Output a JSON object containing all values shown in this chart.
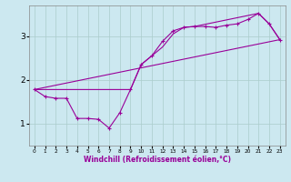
{
  "xlabel": "Windchill (Refroidissement éolien,°C)",
  "background_color": "#cce8f0",
  "grid_color": "#aacccc",
  "line_color": "#990099",
  "xlim": [
    -0.5,
    23.5
  ],
  "ylim": [
    0.5,
    3.7
  ],
  "yticks": [
    1,
    2,
    3
  ],
  "xticks": [
    0,
    1,
    2,
    3,
    4,
    5,
    6,
    7,
    8,
    9,
    10,
    11,
    12,
    13,
    14,
    15,
    16,
    17,
    18,
    19,
    20,
    21,
    22,
    23
  ],
  "series1_x": [
    0,
    1,
    2,
    3,
    4,
    5,
    6,
    7,
    8,
    9,
    10,
    11,
    12,
    13,
    14,
    15,
    16,
    17,
    18,
    19,
    20,
    21,
    22,
    23
  ],
  "series1_y": [
    1.78,
    1.62,
    1.58,
    1.58,
    1.12,
    1.12,
    1.1,
    0.9,
    1.25,
    1.78,
    2.35,
    2.55,
    2.88,
    3.12,
    3.2,
    3.22,
    3.22,
    3.2,
    3.25,
    3.28,
    3.38,
    3.52,
    3.28,
    2.92
  ],
  "series2_x": [
    0,
    1,
    3,
    9,
    10,
    11,
    12,
    13,
    14,
    15,
    21,
    22,
    23
  ],
  "series2_y": [
    1.78,
    1.78,
    1.78,
    1.78,
    2.35,
    2.55,
    2.75,
    3.05,
    3.2,
    3.22,
    3.52,
    3.28,
    2.92
  ],
  "series3_x": [
    0,
    23
  ],
  "series3_y": [
    1.78,
    2.92
  ]
}
